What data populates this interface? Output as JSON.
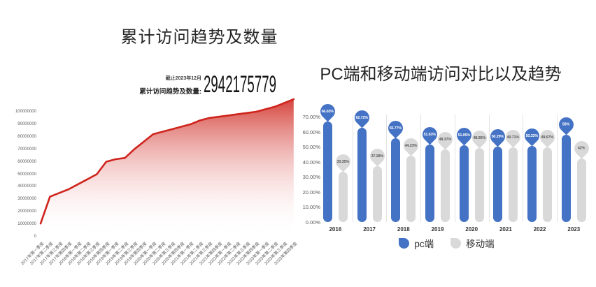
{
  "left_chart": {
    "title": "累计访问趋势及数量",
    "stat": {
      "asof": "截止2023年12月",
      "label": "累计访问趋势及数量:",
      "value": "2942175779"
    }
  },
  "right_chart": {
    "title": "PC端和移动端访问对比以及趋势",
    "legend": {
      "pc": "pc端",
      "mobile": "移动端"
    }
  },
  "colors": {
    "red_line": "#cf241c",
    "pc_blue": "#4472c4",
    "mobile_gray": "#d9d9d9",
    "axis_text": "#595959",
    "title_text": "#262626"
  },
  "chart_data": [
    {
      "type": "area",
      "title": "累计访问趋势及数量",
      "line_color": "#cf241c",
      "fill": "vertical gradient red to white",
      "grid": false,
      "annotation": "截止2023年12月 累计访问趋势及数量: 2942175779",
      "ylim": [
        0,
        110000000
      ],
      "yticks": [
        0,
        10000000,
        20000000,
        30000000,
        40000000,
        50000000,
        60000000,
        70000000,
        80000000,
        90000000,
        100000000
      ],
      "x": [
        "2017年第一季度",
        "2017年第二季度",
        "2017年第三季度",
        "2017年第四季度",
        "2018年第一季度",
        "2018年第二季度",
        "2018年第三季度",
        "2018年第四季度",
        "2019年第一季度",
        "2019年第二季度",
        "2019年第三季度",
        "2019年第四季度",
        "2020年第一季度",
        "2020年第二季度",
        "2020年第三季度",
        "2020年第四季度",
        "2021年第一季度",
        "2021年第二季度",
        "2021年第三季度",
        "2021年第四季度",
        "2022年第一季度",
        "2022年第二季度",
        "2022年第三季度",
        "2022年第四季度",
        "2023年第一季度",
        "2023年第二季度",
        "2023年第三季度",
        "2023年第四季度"
      ],
      "values": [
        10500000,
        32000000,
        35000000,
        38000000,
        42000000,
        46000000,
        50000000,
        60000000,
        62000000,
        63000000,
        70000000,
        76000000,
        82000000,
        84000000,
        86000000,
        88000000,
        90000000,
        93000000,
        95000000,
        96000000,
        97000000,
        98000000,
        99000000,
        100000000,
        102000000,
        104000000,
        107000000,
        110000000
      ]
    },
    {
      "type": "bar",
      "variant": "balloon-lollipop",
      "title": "PC端和移动端访问对比以及趋势",
      "categories": [
        "2016",
        "2017",
        "2018",
        "2019",
        "2020",
        "2021",
        "2022",
        "2023"
      ],
      "series": [
        {
          "name": "pc端",
          "color": "#4472c4",
          "label_text_color": "#ffffff",
          "values": [
            66.65,
            62.72,
            55.77,
            51.63,
            51.05,
            50.29,
            50.33,
            58
          ],
          "labels": [
            "66.65%",
            "62.72%",
            "55.77%",
            "51.63%",
            "51.05%",
            "50.29%",
            "50.33%",
            "58%"
          ]
        },
        {
          "name": "移动端",
          "color": "#d9d9d9",
          "label_text_color": "#595959",
          "values": [
            33.35,
            37.28,
            44.23,
            48.37,
            48.95,
            49.71,
            49.67,
            42
          ],
          "labels": [
            "33.35%",
            "37.28%",
            "44.23%",
            "48.37%",
            "48.95%",
            "49.71%",
            "49.67%",
            "42%"
          ]
        }
      ],
      "yticks": [
        "0.00%",
        "10.00%",
        "20.00%",
        "30.00%",
        "40.00%",
        "50.00%",
        "60.00%",
        "70.00%"
      ],
      "ylim": [
        0,
        70
      ],
      "grid": "vertical group separators",
      "legend_position": "bottom"
    }
  ]
}
